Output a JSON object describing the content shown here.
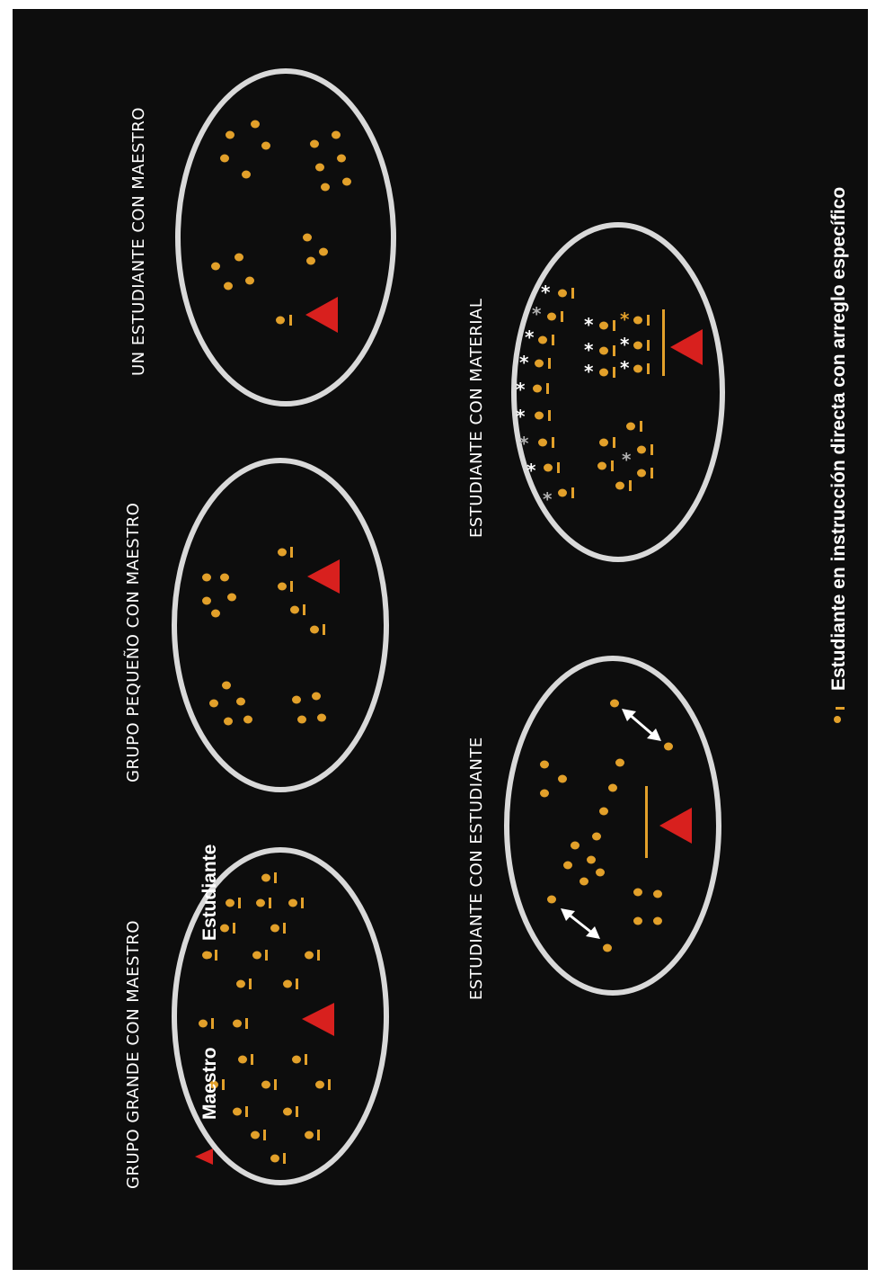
{
  "panels": [
    {
      "id": "grupo-grande",
      "title": "GRUPO GRANDE CON MAESTRO"
    },
    {
      "id": "grupo-pequeno",
      "title": "GRUPO PEQUEÑO CON MAESTRO"
    },
    {
      "id": "un-estudiante",
      "title": "UN ESTUDIANTE CON MAESTRO"
    },
    {
      "id": "estudiante-estudiante",
      "title": "ESTUDIANTE CON ESTUDIANTE"
    },
    {
      "id": "estudiante-material",
      "title": "ESTUDIANTE CON MATERIAL"
    }
  ],
  "legend": {
    "teacher": "Maestro",
    "student": "Estudiante",
    "student_instruction": "Estudiante en instrucción directa con arreglo específico"
  },
  "colors": {
    "background": "#0d0d0d",
    "teacher": "#d8201e",
    "student": "#e2a02a",
    "ring": "#d9d9d9",
    "text": "#ffffff"
  },
  "icons": {
    "teacher": "red-triangle",
    "student": "orange-dot",
    "student_instruction": "orange-dot-with-bar",
    "material": "asterisk",
    "interaction": "double-arrow"
  }
}
